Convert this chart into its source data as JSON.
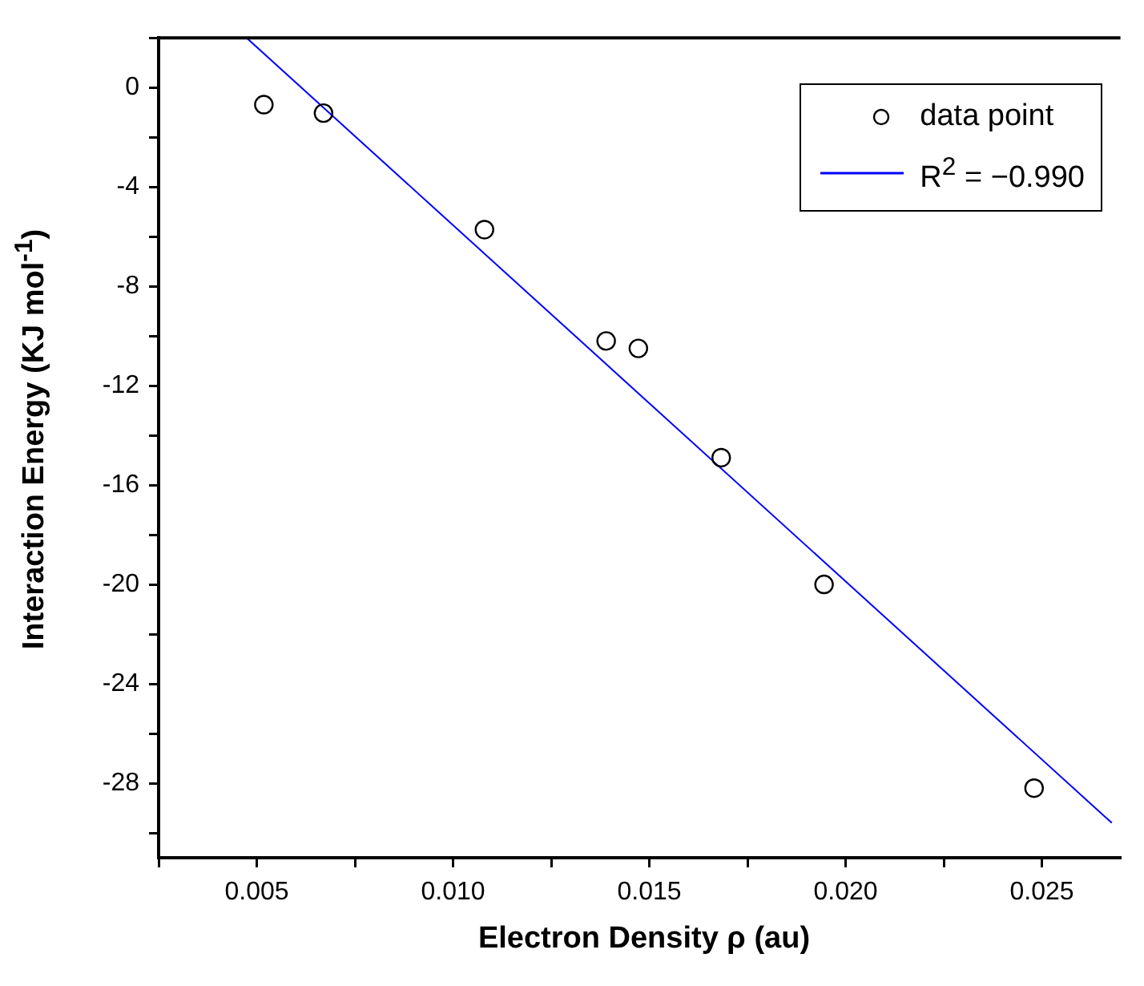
{
  "chart_data": {
    "type": "scatter",
    "xlabel": "Electron Density ρ  (au)",
    "ylabel": "Interaction Energy (KJ mol$^{-1}$)",
    "xlim": [
      0.0025,
      0.027
    ],
    "xticks": [
      {
        "value": 0.0025,
        "label": null
      },
      "0.005",
      {
        "value": 0.0075,
        "label": null
      },
      {
        "value": 0.01,
        "label": "0.010"
      },
      {
        "value": 0.0125,
        "label": null
      },
      {
        "value": 0.015,
        "label": "0.015"
      },
      {
        "value": 0.0175,
        "label": null
      },
      {
        "value": 0.02,
        "label": "0.020"
      },
      {
        "value": 0.0225,
        "label": null
      },
      {
        "value": 0.025,
        "label": "0.025"
      }
    ],
    "ylim": [
      -31,
      2
    ],
    "yticks": [
      {
        "value": -30,
        "label": null
      },
      -28,
      {
        "value": -26,
        "label": null
      },
      -24,
      {
        "value": -22,
        "label": null
      },
      -20,
      {
        "value": -18,
        "label": null
      },
      -16,
      {
        "value": -14,
        "label": null
      },
      -12,
      {
        "value": -10,
        "label": null
      },
      -8,
      {
        "value": -6,
        "label": null
      },
      -4,
      {
        "value": -2,
        "label": null
      },
      0,
      {
        "value": 2,
        "label": null
      }
    ],
    "grid": false,
    "legend": "top right",
    "series": [
      {
        "name": "data point",
        "color": "#000000",
        "marker": "circle",
        "x": [
          0.00518,
          0.0067,
          0.0108,
          0.0139,
          0.01472,
          0.01683,
          0.01945,
          0.0248
        ],
        "values": [
          -0.69,
          -1.03,
          -5.72,
          -10.2,
          -10.5,
          -14.9,
          -20.0,
          -28.2
        ]
      },
      {
        "name": "R$^{2}$ = −0.990",
        "type": "line",
        "color": "#0000ff",
        "marker": "none",
        "line_style": "solid",
        "x": [
          0.00474,
          0.02678
        ],
        "values": [
          2.0,
          -29.6
        ]
      }
    ]
  }
}
